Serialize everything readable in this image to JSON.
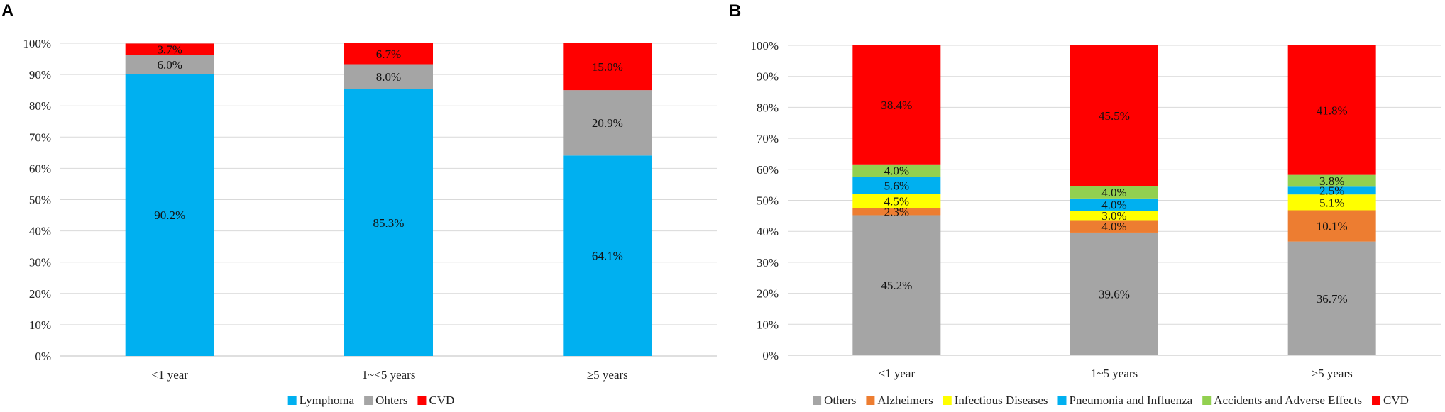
{
  "chart_data": [
    {
      "type": "bar",
      "stacked": true,
      "panel_label": "A",
      "categories": [
        "<1 year",
        "1~<5 years",
        "≥5 years"
      ],
      "ylim": [
        0,
        100
      ],
      "yticks": [
        "0%",
        "10%",
        "20%",
        "30%",
        "40%",
        "50%",
        "60%",
        "70%",
        "80%",
        "90%",
        "100%"
      ],
      "series": [
        {
          "name": "Lymphoma",
          "color": "#00B0F0",
          "values": [
            90.2,
            85.3,
            64.1
          ],
          "labels": [
            "90.2%",
            "85.3%",
            "64.1%"
          ]
        },
        {
          "name": "Ohters",
          "color": "#A5A5A5",
          "values": [
            6.0,
            8.0,
            20.9
          ],
          "labels": [
            "6.0%",
            "8.0%",
            "20.9%"
          ]
        },
        {
          "name": "CVD",
          "color": "#FF0000",
          "values": [
            3.7,
            6.7,
            15.0
          ],
          "labels": [
            "3.7%",
            "6.7%",
            "15.0%"
          ]
        }
      ],
      "legend_position": "bottom"
    },
    {
      "type": "bar",
      "stacked": true,
      "panel_label": "B",
      "categories": [
        "<1 year",
        "1~5 years",
        ">5 years"
      ],
      "ylim": [
        0,
        100
      ],
      "yticks": [
        "0%",
        "10%",
        "20%",
        "30%",
        "40%",
        "50%",
        "60%",
        "70%",
        "80%",
        "90%",
        "100%"
      ],
      "series": [
        {
          "name": "Others",
          "color": "#A5A5A5",
          "values": [
            45.2,
            39.6,
            36.7
          ],
          "labels": [
            "45.2%",
            "39.6%",
            "36.7%"
          ]
        },
        {
          "name": "Alzheimers",
          "color": "#ED7D31",
          "values": [
            2.3,
            4.0,
            10.1
          ],
          "labels": [
            "2.3%",
            "4.0%",
            "10.1%"
          ]
        },
        {
          "name": "Infectious Diseases",
          "color": "#FFFF00",
          "values": [
            4.5,
            3.0,
            5.1
          ],
          "labels": [
            "4.5%",
            "3.0%",
            "5.1%"
          ]
        },
        {
          "name": "Pneumonia and Influenza",
          "color": "#00B0F0",
          "values": [
            5.6,
            4.0,
            2.5
          ],
          "labels": [
            "5.6%",
            "4.0%",
            "2.5%"
          ]
        },
        {
          "name": "Accidents and Adverse Effects",
          "color": "#92D050",
          "values": [
            4.0,
            4.0,
            3.8
          ],
          "labels": [
            "4.0%",
            "4.0%",
            "3.8%"
          ]
        },
        {
          "name": "CVD",
          "color": "#FF0000",
          "values": [
            38.4,
            45.5,
            41.8
          ],
          "labels": [
            "38.4%",
            "45.5%",
            "41.8%"
          ]
        }
      ],
      "legend_position": "bottom"
    }
  ]
}
